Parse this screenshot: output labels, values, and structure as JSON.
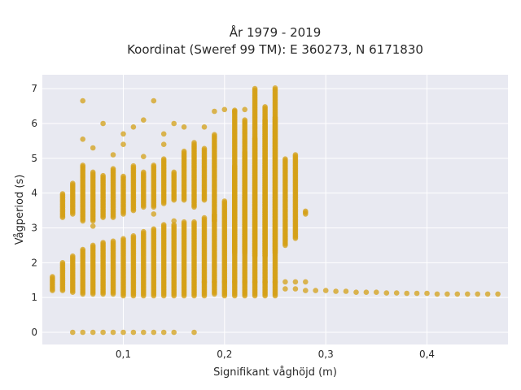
{
  "chart_data": {
    "type": "scatter",
    "title_lines": [
      "År 1979 - 2019",
      "Koordinat (Sweref 99 TM): E 360273, N 6171830"
    ],
    "xlabel": "Signifikant våghöjd (m)",
    "ylabel": "Vågperiod (s)",
    "xlim": [
      0.02,
      0.48
    ],
    "ylim": [
      -0.35,
      7.4
    ],
    "x_ticks": [
      0.1,
      0.2,
      0.3,
      0.4
    ],
    "x_tick_labels": [
      "0,1",
      "0,2",
      "0,3",
      "0,4"
    ],
    "y_ticks": [
      0,
      1,
      2,
      3,
      4,
      5,
      6,
      7
    ],
    "y_tick_labels": [
      "0",
      "1",
      "2",
      "3",
      "4",
      "5",
      "6",
      "7"
    ],
    "grid": true,
    "colors": {
      "marker": "#d4a017",
      "plot_bg": "#e8e9f1",
      "grid": "#ffffff"
    },
    "series": [
      {
        "columns": [
          {
            "x": 0.03,
            "ymin": 1.2,
            "ymax": 1.6
          },
          {
            "x": 0.04,
            "ymin": 1.2,
            "ymax": 2.0
          },
          {
            "x": 0.05,
            "ymin": 1.15,
            "ymax": 2.2
          },
          {
            "x": 0.06,
            "ymin": 1.1,
            "ymax": 2.4
          },
          {
            "x": 0.07,
            "ymin": 1.1,
            "ymax": 2.5
          },
          {
            "x": 0.08,
            "ymin": 1.1,
            "ymax": 2.6
          },
          {
            "x": 0.09,
            "ymin": 1.1,
            "ymax": 2.65
          },
          {
            "x": 0.1,
            "ymin": 1.05,
            "ymax": 2.7
          },
          {
            "x": 0.11,
            "ymin": 1.05,
            "ymax": 2.8
          },
          {
            "x": 0.12,
            "ymin": 1.05,
            "ymax": 2.9
          },
          {
            "x": 0.13,
            "ymin": 1.05,
            "ymax": 3.0
          },
          {
            "x": 0.14,
            "ymin": 1.05,
            "ymax": 3.1
          },
          {
            "x": 0.15,
            "ymin": 1.05,
            "ymax": 3.1
          },
          {
            "x": 0.16,
            "ymin": 1.05,
            "ymax": 3.2
          },
          {
            "x": 0.17,
            "ymin": 1.05,
            "ymax": 3.2
          },
          {
            "x": 0.18,
            "ymin": 1.05,
            "ymax": 3.3
          },
          {
            "x": 0.19,
            "ymin": 1.1,
            "ymax": 3.4
          },
          {
            "x": 0.2,
            "ymin": 1.05,
            "ymax": 3.8
          },
          {
            "x": 0.21,
            "ymin": 1.05,
            "ymax": 4.8
          },
          {
            "x": 0.22,
            "ymin": 1.05,
            "ymax": 5.2
          },
          {
            "x": 0.23,
            "ymin": 1.05,
            "ymax": 5.6
          },
          {
            "x": 0.24,
            "ymin": 1.05,
            "ymax": 6.1
          },
          {
            "x": 0.25,
            "ymin": 1.05,
            "ymax": 6.2
          }
        ],
        "upper_columns": [
          {
            "x": 0.04,
            "ymin": 3.3,
            "ymax": 4.0
          },
          {
            "x": 0.05,
            "ymin": 3.4,
            "ymax": 4.3
          },
          {
            "x": 0.06,
            "ymin": 3.2,
            "ymax": 4.8
          },
          {
            "x": 0.07,
            "ymin": 3.2,
            "ymax": 4.6
          },
          {
            "x": 0.08,
            "ymin": 3.3,
            "ymax": 4.5
          },
          {
            "x": 0.09,
            "ymin": 3.3,
            "ymax": 4.7
          },
          {
            "x": 0.1,
            "ymin": 3.4,
            "ymax": 4.5
          },
          {
            "x": 0.11,
            "ymin": 3.5,
            "ymax": 4.8
          },
          {
            "x": 0.12,
            "ymin": 3.6,
            "ymax": 4.6
          },
          {
            "x": 0.13,
            "ymin": 3.6,
            "ymax": 4.8
          },
          {
            "x": 0.14,
            "ymin": 3.7,
            "ymax": 5.0
          },
          {
            "x": 0.15,
            "ymin": 3.8,
            "ymax": 4.6
          },
          {
            "x": 0.16,
            "ymin": 3.8,
            "ymax": 5.2
          },
          {
            "x": 0.17,
            "ymin": 3.6,
            "ymax": 5.4
          },
          {
            "x": 0.18,
            "ymin": 3.8,
            "ymax": 5.3
          },
          {
            "x": 0.19,
            "ymin": 3.2,
            "ymax": 5.7
          },
          {
            "x": 0.21,
            "ymin": 2.3,
            "ymax": 6.4
          },
          {
            "x": 0.22,
            "ymin": 2.3,
            "ymax": 6.1
          },
          {
            "x": 0.23,
            "ymin": 2.2,
            "ymax": 7.0
          },
          {
            "x": 0.24,
            "ymin": 2.2,
            "ymax": 6.5
          },
          {
            "x": 0.25,
            "ymin": 2.3,
            "ymax": 7.05
          },
          {
            "x": 0.26,
            "ymin": 2.5,
            "ymax": 5.0
          },
          {
            "x": 0.27,
            "ymin": 2.7,
            "ymax": 5.1
          },
          {
            "x": 0.28,
            "ymin": 3.4,
            "ymax": 3.5
          }
        ],
        "band_1_5": [
          {
            "x": 0.18,
            "y": 1.45
          },
          {
            "x": 0.19,
            "y": 1.45
          },
          {
            "x": 0.2,
            "y": 1.45
          },
          {
            "x": 0.21,
            "y": 1.45
          },
          {
            "x": 0.22,
            "y": 1.45
          },
          {
            "x": 0.23,
            "y": 1.45
          },
          {
            "x": 0.24,
            "y": 1.45
          },
          {
            "x": 0.25,
            "y": 1.45
          },
          {
            "x": 0.26,
            "y": 1.45
          },
          {
            "x": 0.27,
            "y": 1.45
          },
          {
            "x": 0.28,
            "y": 1.45
          }
        ],
        "tail": [
          {
            "x": 0.26,
            "y": 1.25
          },
          {
            "x": 0.27,
            "y": 1.25
          },
          {
            "x": 0.28,
            "y": 1.2
          },
          {
            "x": 0.29,
            "y": 1.2
          },
          {
            "x": 0.3,
            "y": 1.2
          },
          {
            "x": 0.31,
            "y": 1.18
          },
          {
            "x": 0.32,
            "y": 1.18
          },
          {
            "x": 0.33,
            "y": 1.15
          },
          {
            "x": 0.34,
            "y": 1.15
          },
          {
            "x": 0.35,
            "y": 1.15
          },
          {
            "x": 0.36,
            "y": 1.13
          },
          {
            "x": 0.37,
            "y": 1.13
          },
          {
            "x": 0.38,
            "y": 1.12
          },
          {
            "x": 0.39,
            "y": 1.12
          },
          {
            "x": 0.4,
            "y": 1.12
          },
          {
            "x": 0.41,
            "y": 1.1
          },
          {
            "x": 0.42,
            "y": 1.1
          },
          {
            "x": 0.43,
            "y": 1.1
          },
          {
            "x": 0.44,
            "y": 1.1
          },
          {
            "x": 0.45,
            "y": 1.1
          },
          {
            "x": 0.46,
            "y": 1.1
          },
          {
            "x": 0.47,
            "y": 1.1
          }
        ],
        "zeros": [
          {
            "x": 0.06,
            "y": 0
          },
          {
            "x": 0.07,
            "y": 0
          },
          {
            "x": 0.08,
            "y": 0
          },
          {
            "x": 0.09,
            "y": 0
          },
          {
            "x": 0.1,
            "y": 0
          },
          {
            "x": 0.11,
            "y": 0
          },
          {
            "x": 0.12,
            "y": 0
          },
          {
            "x": 0.13,
            "y": 0
          },
          {
            "x": 0.14,
            "y": 0
          },
          {
            "x": 0.15,
            "y": 0
          },
          {
            "x": 0.17,
            "y": 0
          },
          {
            "x": 0.05,
            "y": 0
          }
        ],
        "outliers": [
          {
            "x": 0.06,
            "y": 6.65
          },
          {
            "x": 0.07,
            "y": 5.3
          },
          {
            "x": 0.08,
            "y": 6.0
          },
          {
            "x": 0.09,
            "y": 5.1
          },
          {
            "x": 0.1,
            "y": 5.7
          },
          {
            "x": 0.11,
            "y": 5.9
          },
          {
            "x": 0.12,
            "y": 6.1
          },
          {
            "x": 0.13,
            "y": 6.65
          },
          {
            "x": 0.14,
            "y": 5.7
          },
          {
            "x": 0.15,
            "y": 6.0
          },
          {
            "x": 0.16,
            "y": 5.9
          },
          {
            "x": 0.17,
            "y": 5.45
          },
          {
            "x": 0.18,
            "y": 5.9
          },
          {
            "x": 0.19,
            "y": 6.35
          },
          {
            "x": 0.2,
            "y": 6.4
          },
          {
            "x": 0.21,
            "y": 6.35
          },
          {
            "x": 0.22,
            "y": 6.4
          },
          {
            "x": 0.06,
            "y": 5.55
          },
          {
            "x": 0.1,
            "y": 5.4
          },
          {
            "x": 0.14,
            "y": 5.4
          },
          {
            "x": 0.12,
            "y": 5.05
          },
          {
            "x": 0.07,
            "y": 3.05
          },
          {
            "x": 0.13,
            "y": 3.4
          },
          {
            "x": 0.15,
            "y": 3.2
          }
        ]
      }
    ]
  }
}
